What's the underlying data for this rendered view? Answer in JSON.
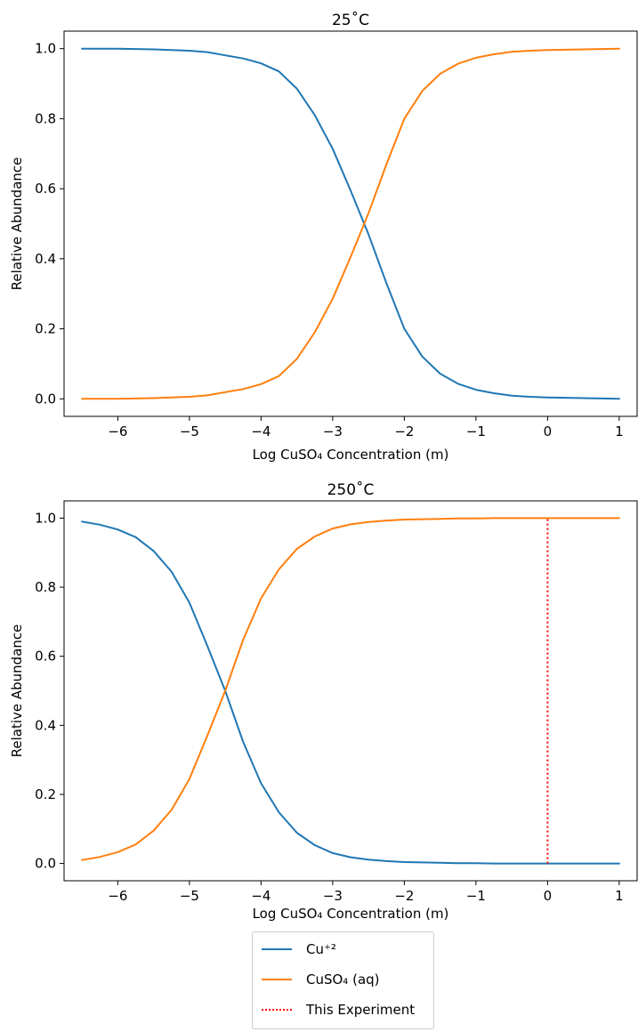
{
  "chart_data": [
    {
      "type": "line",
      "title": "25˚C",
      "xlabel": "Log CuSO₄ Concentration (m)",
      "ylabel": "Relative Abundance",
      "xlim": [
        -6.75,
        1.25
      ],
      "ylim": [
        -0.05,
        1.05
      ],
      "xticks": [
        -6,
        -5,
        -4,
        -3,
        -2,
        -1,
        0,
        1
      ],
      "xtick_labels": [
        "−6",
        "−5",
        "−4",
        "−3",
        "−2",
        "−1",
        "0",
        "1"
      ],
      "yticks": [
        0.0,
        0.2,
        0.4,
        0.6,
        0.8,
        1.0
      ],
      "ytick_labels": [
        "0.0",
        "0.2",
        "0.4",
        "0.6",
        "0.8",
        "1.0"
      ],
      "x": [
        -6.5,
        -6.25,
        -6.0,
        -5.75,
        -5.5,
        -5.25,
        -5.0,
        -4.75,
        -4.5,
        -4.25,
        -4.0,
        -3.75,
        -3.5,
        -3.25,
        -3.0,
        -2.75,
        -2.5,
        -2.25,
        -2.0,
        -1.75,
        -1.5,
        -1.25,
        -1.0,
        -0.75,
        -0.5,
        -0.25,
        0.0,
        0.25,
        0.5,
        0.75,
        1.0
      ],
      "series": [
        {
          "name": "Cu⁺²",
          "color": "#1f77b4",
          "values": [
            1.0,
            1.0,
            1.0,
            0.999,
            0.998,
            0.996,
            0.994,
            0.99,
            0.981,
            0.972,
            0.958,
            0.935,
            0.886,
            0.81,
            0.714,
            0.595,
            0.47,
            0.33,
            0.2,
            0.121,
            0.072,
            0.043,
            0.026,
            0.016,
            0.009,
            0.006,
            0.004,
            0.003,
            0.002,
            0.001,
            0.0
          ]
        },
        {
          "name": "CuSO₄ (aq)",
          "color": "#ff7f0e",
          "values": [
            0.0,
            0.0,
            0.0,
            0.001,
            0.002,
            0.004,
            0.006,
            0.01,
            0.019,
            0.028,
            0.042,
            0.065,
            0.114,
            0.19,
            0.286,
            0.405,
            0.53,
            0.67,
            0.8,
            0.879,
            0.928,
            0.957,
            0.974,
            0.984,
            0.991,
            0.994,
            0.996,
            0.997,
            0.998,
            0.999,
            1.0
          ]
        }
      ]
    },
    {
      "type": "line",
      "title": "250˚C",
      "xlabel": "Log CuSO₄ Concentration (m)",
      "ylabel": "Relative Abundance",
      "xlim": [
        -6.75,
        1.25
      ],
      "ylim": [
        -0.05,
        1.05
      ],
      "xticks": [
        -6,
        -5,
        -4,
        -3,
        -2,
        -1,
        0,
        1
      ],
      "xtick_labels": [
        "−6",
        "−5",
        "−4",
        "−3",
        "−2",
        "−1",
        "0",
        "1"
      ],
      "yticks": [
        0.0,
        0.2,
        0.4,
        0.6,
        0.8,
        1.0
      ],
      "ytick_labels": [
        "0.0",
        "0.2",
        "0.4",
        "0.6",
        "0.8",
        "1.0"
      ],
      "x": [
        -6.5,
        -6.25,
        -6.0,
        -5.75,
        -5.5,
        -5.25,
        -5.0,
        -4.75,
        -4.5,
        -4.25,
        -4.0,
        -3.75,
        -3.5,
        -3.25,
        -3.0,
        -2.75,
        -2.5,
        -2.25,
        -2.0,
        -1.75,
        -1.5,
        -1.25,
        -1.0,
        -0.75,
        -0.5,
        -0.25,
        0.0,
        0.25,
        0.5,
        0.75,
        1.0
      ],
      "series": [
        {
          "name": "Cu⁺²",
          "color": "#1f77b4",
          "values": [
            0.99,
            0.981,
            0.967,
            0.945,
            0.905,
            0.845,
            0.755,
            0.63,
            0.5,
            0.352,
            0.232,
            0.148,
            0.089,
            0.053,
            0.03,
            0.018,
            0.011,
            0.007,
            0.004,
            0.003,
            0.002,
            0.001,
            0.001,
            0.0,
            0.0,
            0.0,
            0.0,
            0.0,
            0.0,
            0.0,
            0.0
          ]
        },
        {
          "name": "CuSO₄ (aq)",
          "color": "#ff7f0e",
          "values": [
            0.01,
            0.019,
            0.033,
            0.055,
            0.095,
            0.155,
            0.245,
            0.37,
            0.5,
            0.648,
            0.768,
            0.852,
            0.911,
            0.947,
            0.97,
            0.982,
            0.989,
            0.993,
            0.996,
            0.997,
            0.998,
            0.999,
            0.999,
            1.0,
            1.0,
            1.0,
            1.0,
            1.0,
            1.0,
            1.0,
            1.0
          ]
        }
      ],
      "vline": {
        "name": "This Experiment",
        "x": 0,
        "color": "#ff0000",
        "y_range": [
          0.0,
          1.0
        ]
      }
    }
  ],
  "legend": {
    "items": [
      {
        "label": "Cu⁺²",
        "color": "#1f77b4",
        "style": "solid"
      },
      {
        "label": "CuSO₄ (aq)",
        "color": "#ff7f0e",
        "style": "solid"
      },
      {
        "label": "This Experiment",
        "color": "#ff0000",
        "style": "dotted"
      }
    ]
  }
}
